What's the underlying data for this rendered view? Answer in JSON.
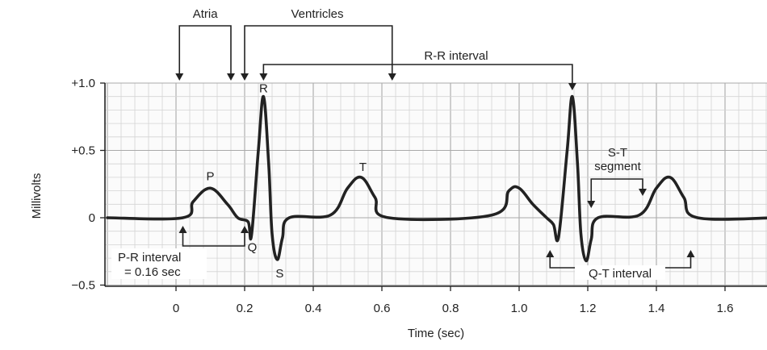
{
  "chart_data": {
    "type": "line",
    "xlabel": "Time (sec)",
    "ylabel": "Millivolts",
    "xlim": [
      -0.2,
      1.75
    ],
    "ylim": [
      -0.5,
      1.0
    ],
    "x_ticks": [
      "0",
      "0.2",
      "0.4",
      "0.6",
      "0.8",
      "1.0",
      "1.2",
      "1.4",
      "1.6"
    ],
    "x_tick_values": [
      0,
      0.2,
      0.4,
      0.6,
      0.8,
      1.0,
      1.2,
      1.4,
      1.6
    ],
    "y_ticks": [
      "+1.0",
      "+0.5",
      "0",
      "−0.5"
    ],
    "y_tick_values": [
      1.0,
      0.5,
      0,
      -0.5
    ],
    "grid": true,
    "series": [
      {
        "x": [
          -0.2,
          0.02,
          0.05,
          0.1,
          0.15,
          0.18,
          0.21,
          0.22,
          0.24,
          0.255,
          0.27,
          0.28,
          0.295,
          0.31,
          0.33,
          0.45,
          0.5,
          0.54,
          0.58,
          0.62,
          0.92,
          0.97,
          1.0,
          1.04,
          1.08,
          1.1,
          1.115,
          1.14,
          1.155,
          1.17,
          1.18,
          1.195,
          1.21,
          1.23,
          1.35,
          1.4,
          1.44,
          1.48,
          1.52,
          1.75
        ],
        "y": [
          0,
          0,
          0.12,
          0.22,
          0.1,
          0,
          -0.03,
          -0.13,
          0.5,
          0.9,
          0.4,
          -0.12,
          -0.31,
          -0.15,
          0,
          0.02,
          0.22,
          0.3,
          0.15,
          0,
          0.02,
          0.2,
          0.22,
          0.1,
          0,
          -0.05,
          -0.14,
          0.5,
          0.9,
          0.4,
          -0.12,
          -0.32,
          -0.16,
          0,
          0.02,
          0.22,
          0.3,
          0.15,
          0,
          0
        ]
      }
    ],
    "wave_labels": [
      {
        "text": "P",
        "x": 0.1,
        "y": 0.22
      },
      {
        "text": "R",
        "x": 0.255,
        "y": 0.9
      },
      {
        "text": "Q",
        "x": 0.22,
        "y": -0.13
      },
      {
        "text": "S",
        "x": 0.295,
        "y": -0.31
      },
      {
        "text": "T",
        "x": 0.54,
        "y": 0.3
      }
    ],
    "annotations": {
      "atria": "Atria",
      "ventricles": "Ventricles",
      "rr_interval": "R-R interval",
      "pr_interval_line1": "P-R interval",
      "pr_interval_line2": "= 0.16 sec",
      "st_segment_line1": "S-T",
      "st_segment_line2": "segment",
      "qt_interval": "Q-T interval"
    },
    "annotation_spans": {
      "atria": [
        0.01,
        0.16
      ],
      "ventricles": [
        0.2,
        0.63
      ],
      "rr_interval": [
        0.255,
        1.155
      ],
      "pr_interval": [
        0.02,
        0.2
      ],
      "st_segment": [
        1.21,
        1.36
      ],
      "qt_interval": [
        1.09,
        1.5
      ]
    }
  }
}
